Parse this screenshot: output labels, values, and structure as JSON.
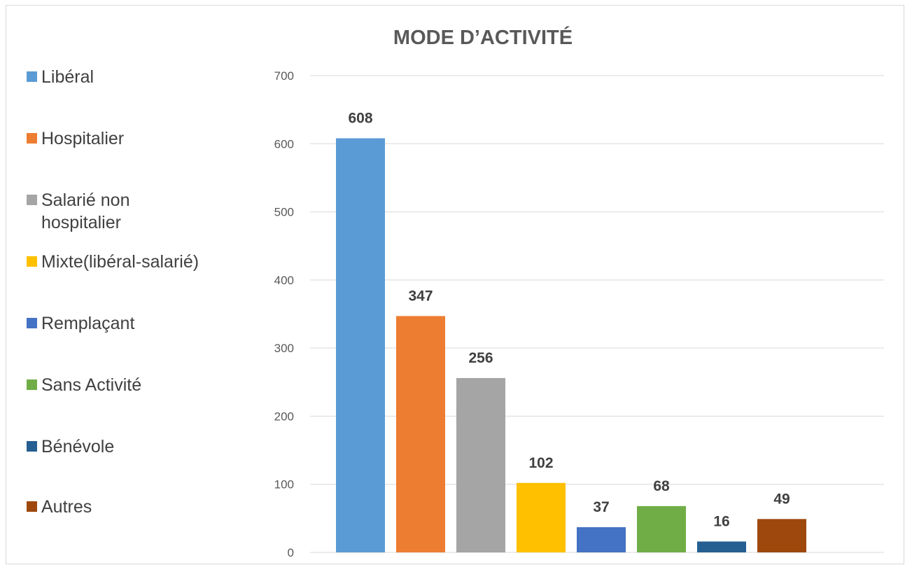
{
  "chart_data": {
    "type": "bar",
    "title": "MODE D’ACTIVITÉ",
    "xlabel": "",
    "ylabel": "",
    "ylim": [
      0,
      700
    ],
    "yticks": [
      0,
      100,
      200,
      300,
      400,
      500,
      600,
      700
    ],
    "grid": true,
    "legend_position": "left",
    "categories": [
      "Libéral",
      "Hospitalier",
      "Salarié non hospitalier",
      "Mixte(libéral-salarié)",
      "Remplaçant",
      "Sans Activité",
      "Bénévole",
      "Autres"
    ],
    "values": [
      608,
      347,
      256,
      102,
      37,
      68,
      16,
      49
    ],
    "colors": [
      "#5b9bd5",
      "#ed7d31",
      "#a5a5a5",
      "#ffc000",
      "#4472c4",
      "#70ad47",
      "#255e91",
      "#9e480e"
    ]
  }
}
